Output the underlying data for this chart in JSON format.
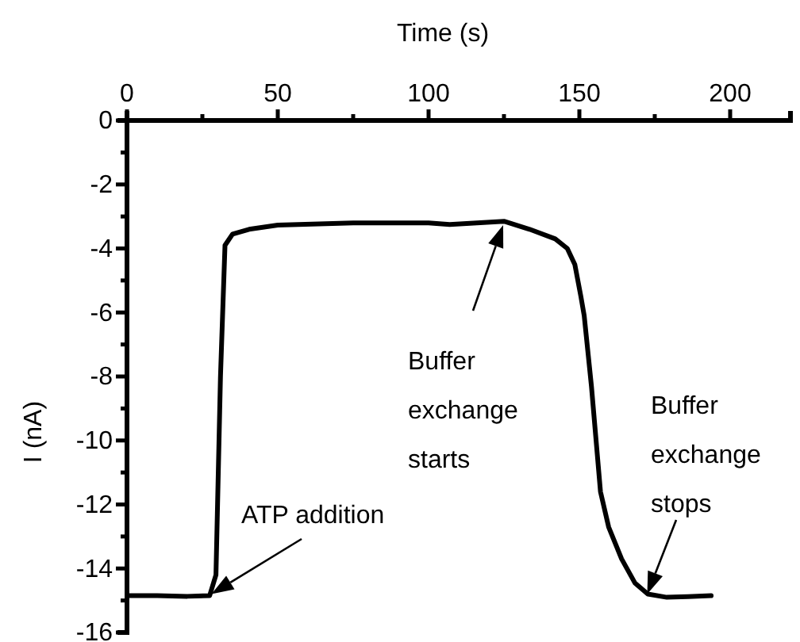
{
  "chart_data": {
    "type": "line",
    "xlabel": "Time (s)",
    "ylabel": "I (nA)",
    "xlim": [
      0,
      220
    ],
    "ylim": [
      -16,
      0
    ],
    "xticks": [
      0,
      {
        "value": 25,
        "label": null
      },
      50,
      {
        "value": 75,
        "label": null
      },
      100,
      {
        "value": 125,
        "label": null
      },
      150,
      {
        "value": 175,
        "label": null
      },
      200
    ],
    "yticks": [
      0,
      {
        "value": -1,
        "label": null
      },
      -2,
      {
        "value": -3,
        "label": null
      },
      -4,
      {
        "value": -5,
        "label": null
      },
      -6,
      {
        "value": -7,
        "label": null
      },
      -8,
      {
        "value": -9,
        "label": null
      },
      -10,
      {
        "value": -11,
        "label": null
      },
      -12,
      {
        "value": -13,
        "label": null
      },
      -14,
      {
        "value": -15,
        "label": null
      },
      -16
    ],
    "grid": false,
    "marker": "none",
    "line_style": "solid",
    "series": [
      {
        "color": "#000000",
        "x": [
          0,
          10,
          20,
          27.4,
          29.5,
          31,
          32.5,
          35,
          40.5,
          50,
          75,
          100,
          107,
          125,
          133.5,
          142,
          146,
          148.5,
          150.5,
          151.6,
          154,
          157,
          159.7,
          164,
          168.4,
          172.7,
          179,
          186,
          193.7
        ],
        "values": [
          -14.85,
          -14.85,
          -14.87,
          -14.85,
          -14.2,
          -8,
          -3.9,
          -3.55,
          -3.4,
          -3.27,
          -3.2,
          -3.2,
          -3.25,
          -3.15,
          -3.4,
          -3.7,
          -4.0,
          -4.5,
          -5.5,
          -6.1,
          -8.3,
          -11.6,
          -12.7,
          -13.7,
          -14.45,
          -14.8,
          -14.9,
          -14.88,
          -14.85
        ]
      }
    ],
    "annotations": [
      {
        "text": "ATP addition",
        "x": 28,
        "y": -14.8
      },
      "Buffer exchange starts",
      {
        "text": "Buffer exchange stops",
        "x": 172.5,
        "y": -14.8
      }
    ]
  }
}
